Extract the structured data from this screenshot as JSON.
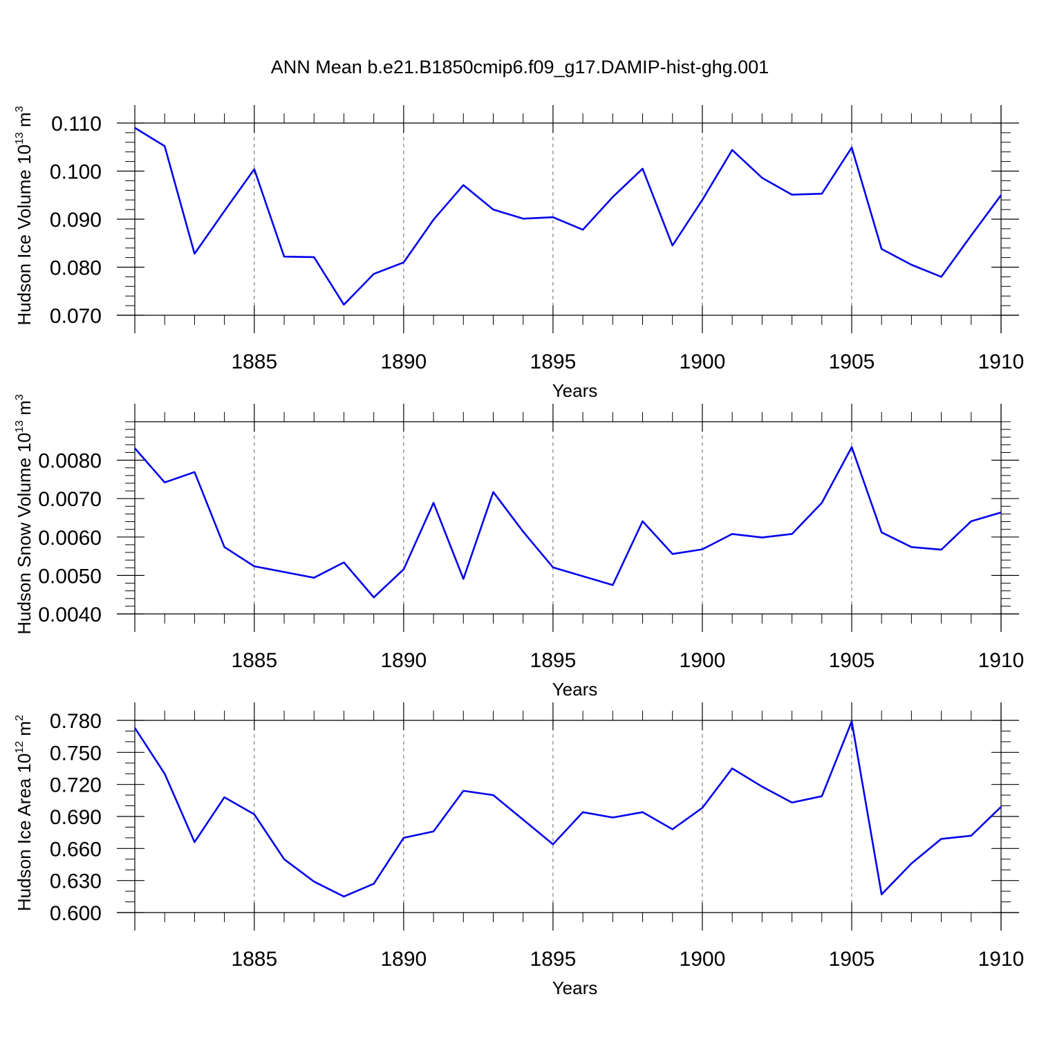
{
  "title": "ANN Mean b.e21.B1850cmip6.f09_g17.DAMIP-hist-ghg.001",
  "colors": {
    "line": "#0000ee",
    "axis": "#000000",
    "grid": "#666666"
  },
  "chart_data": [
    {
      "type": "line",
      "xlabel": "Years",
      "ylabel": "Hudson Ice Volume 10",
      "ylabel_exp": "13",
      "ylabel_unit": "m",
      "ylabel_unit_exp": "3",
      "xlim": [
        1881,
        1910
      ],
      "ylim": [
        0.07,
        0.11
      ],
      "x_ticks": [
        1885,
        1890,
        1895,
        1900,
        1905,
        1910
      ],
      "x_tick_labels": [
        "1885",
        "1890",
        "1895",
        "1900",
        "1905",
        "1910"
      ],
      "y_ticks": [
        0.07,
        0.08,
        0.09,
        0.1,
        0.11
      ],
      "y_tick_labels": [
        "0.070",
        "0.080",
        "0.090",
        "0.100",
        "0.110"
      ],
      "y_minor_step": 0.002,
      "x": [
        1881,
        1882,
        1883,
        1884,
        1885,
        1886,
        1887,
        1888,
        1889,
        1890,
        1891,
        1892,
        1893,
        1894,
        1895,
        1896,
        1897,
        1898,
        1899,
        1900,
        1901,
        1902,
        1903,
        1904,
        1905,
        1906,
        1907,
        1908,
        1909,
        1910
      ],
      "series": [
        {
          "name": "Hudson Ice Volume",
          "values": [
            0.109,
            0.1052,
            0.0828,
            0.0917,
            0.1004,
            0.0822,
            0.0821,
            0.0722,
            0.0786,
            0.081,
            0.0899,
            0.0971,
            0.092,
            0.0901,
            0.0904,
            0.0878,
            0.0946,
            0.1005,
            0.0845,
            0.094,
            0.1044,
            0.0986,
            0.0951,
            0.0953,
            0.1049,
            0.0838,
            0.0805,
            0.078,
            0.0866,
            0.095
          ]
        }
      ]
    },
    {
      "type": "line",
      "xlabel": "Years",
      "ylabel": "Hudson Snow Volume 10",
      "ylabel_exp": "13",
      "ylabel_unit": "m",
      "ylabel_unit_exp": "3",
      "xlim": [
        1881,
        1910
      ],
      "ylim": [
        0.004,
        0.009
      ],
      "x_ticks": [
        1885,
        1890,
        1895,
        1900,
        1905,
        1910
      ],
      "x_tick_labels": [
        "1885",
        "1890",
        "1895",
        "1900",
        "1905",
        "1910"
      ],
      "y_ticks": [
        0.004,
        0.005,
        0.006,
        0.007,
        0.008
      ],
      "y_tick_labels": [
        "0.0040",
        "0.0050",
        "0.0060",
        "0.0070",
        "0.0080"
      ],
      "y_minor_step": 0.0002,
      "x": [
        1881,
        1882,
        1883,
        1884,
        1885,
        1886,
        1887,
        1888,
        1889,
        1890,
        1891,
        1892,
        1893,
        1894,
        1895,
        1896,
        1897,
        1898,
        1899,
        1900,
        1901,
        1902,
        1903,
        1904,
        1905,
        1906,
        1907,
        1908,
        1909,
        1910
      ],
      "series": [
        {
          "name": "Hudson Snow Volume",
          "values": [
            0.00831,
            0.00742,
            0.00769,
            0.00574,
            0.00524,
            0.00509,
            0.00494,
            0.00534,
            0.00443,
            0.00516,
            0.00689,
            0.00491,
            0.00717,
            0.00614,
            0.00521,
            0.00498,
            0.00475,
            0.00641,
            0.00556,
            0.00568,
            0.00608,
            0.00599,
            0.00608,
            0.00689,
            0.00834,
            0.00612,
            0.00574,
            0.00567,
            0.00641,
            0.00664
          ]
        }
      ]
    },
    {
      "type": "line",
      "xlabel": "Years",
      "ylabel": "Hudson Ice Area 10",
      "ylabel_exp": "12",
      "ylabel_unit": "m",
      "ylabel_unit_exp": "2",
      "xlim": [
        1881,
        1910
      ],
      "ylim": [
        0.6,
        0.78
      ],
      "x_ticks": [
        1885,
        1890,
        1895,
        1900,
        1905,
        1910
      ],
      "x_tick_labels": [
        "1885",
        "1890",
        "1895",
        "1900",
        "1905",
        "1910"
      ],
      "y_ticks": [
        0.6,
        0.63,
        0.66,
        0.69,
        0.72,
        0.75,
        0.78
      ],
      "y_tick_labels": [
        "0.600",
        "0.630",
        "0.660",
        "0.690",
        "0.720",
        "0.750",
        "0.780"
      ],
      "y_minor_step": 0.01,
      "x": [
        1881,
        1882,
        1883,
        1884,
        1885,
        1886,
        1887,
        1888,
        1889,
        1890,
        1891,
        1892,
        1893,
        1894,
        1895,
        1896,
        1897,
        1898,
        1899,
        1900,
        1901,
        1902,
        1903,
        1904,
        1905,
        1906,
        1907,
        1908,
        1909,
        1910
      ],
      "series": [
        {
          "name": "Hudson Ice Area",
          "values": [
            0.773,
            0.73,
            0.666,
            0.708,
            0.692,
            0.65,
            0.629,
            0.615,
            0.627,
            0.67,
            0.676,
            0.714,
            0.71,
            0.687,
            0.664,
            0.694,
            0.689,
            0.694,
            0.678,
            0.698,
            0.735,
            0.718,
            0.703,
            0.709,
            0.779,
            0.617,
            0.646,
            0.669,
            0.672,
            0.699
          ]
        }
      ]
    }
  ]
}
